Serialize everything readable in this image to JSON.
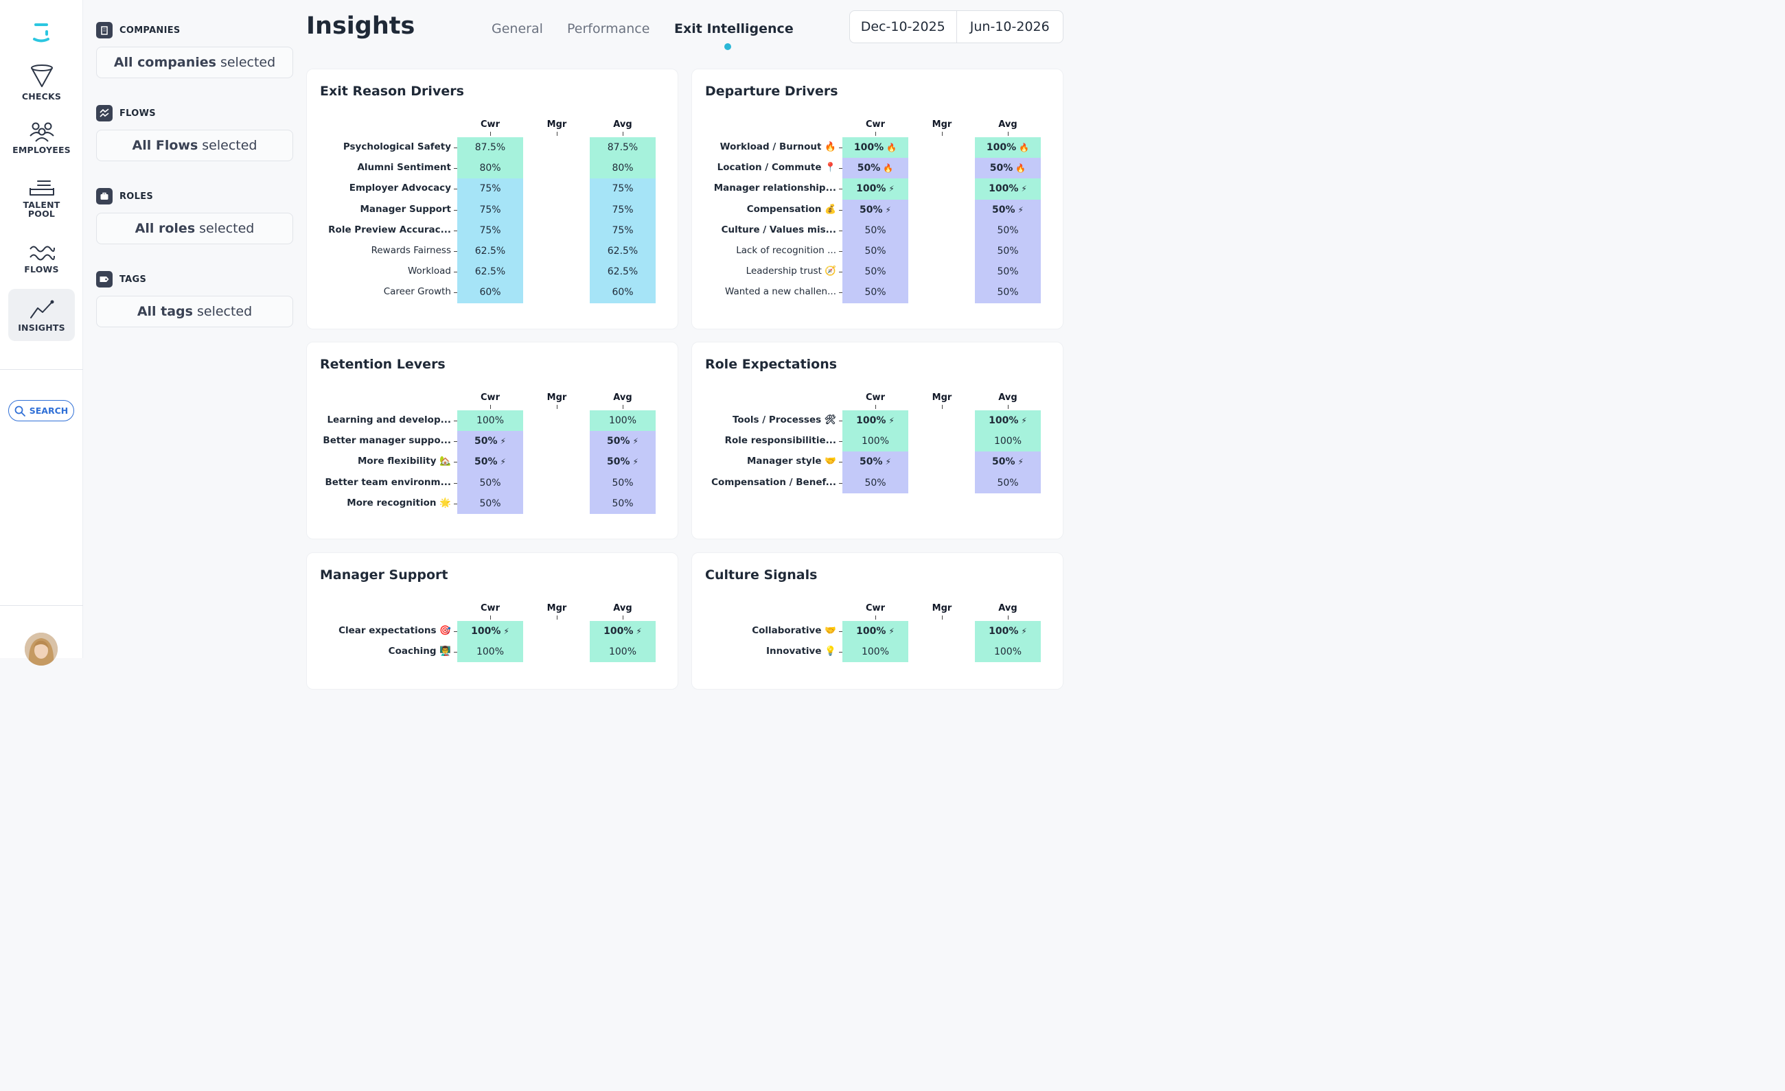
{
  "nav": {
    "items": [
      {
        "label": "CHECKS",
        "icon": "funnel-icon"
      },
      {
        "label": "EMPLOYEES",
        "icon": "people-icon"
      },
      {
        "label": "TALENT POOL",
        "icon": "tray-icon"
      },
      {
        "label": "FLOWS",
        "icon": "waves-icon"
      },
      {
        "label": "INSIGHTS",
        "icon": "chart-line-icon",
        "active": true
      }
    ],
    "search_label": "SEARCH"
  },
  "filters": [
    {
      "title": "COMPANIES",
      "value_bold": "All companies",
      "value_rest": "selected",
      "icon": "building-icon"
    },
    {
      "title": "FLOWS",
      "value_bold": "All Flows",
      "value_rest": "selected",
      "icon": "flows-icon"
    },
    {
      "title": "ROLES",
      "value_bold": "All roles",
      "value_rest": "selected",
      "icon": "briefcase-icon"
    },
    {
      "title": "TAGS",
      "value_bold": "All tags",
      "value_rest": "selected",
      "icon": "tag-icon"
    }
  ],
  "header": {
    "title": "Insights",
    "tabs": [
      "General",
      "Performance",
      "Exit Intelligence"
    ],
    "active_tab": "Exit Intelligence",
    "date_from": "Dec-10-2025",
    "date_to": "Jun-10-2026"
  },
  "colors": {
    "mint": "#a6f2dc",
    "sky": "#a6e4f7",
    "periwinkle": "#c3c9f9",
    "accent": "#2bb7d6",
    "link": "#2f6fd6"
  },
  "columns": [
    "Cwr",
    "Mgr",
    "Avg"
  ],
  "cards": [
    {
      "title": "Exit Reason Drivers",
      "rows": [
        {
          "label": "Psychological Safety",
          "bold": true,
          "value": "87.5%",
          "value_bold": false,
          "emoji": "",
          "color": "mint"
        },
        {
          "label": "Alumni Sentiment",
          "bold": true,
          "value": "80%",
          "value_bold": false,
          "emoji": "",
          "color": "mint"
        },
        {
          "label": "Employer Advocacy",
          "bold": true,
          "value": "75%",
          "value_bold": false,
          "emoji": "",
          "color": "sky"
        },
        {
          "label": "Manager Support",
          "bold": true,
          "value": "75%",
          "value_bold": false,
          "emoji": "",
          "color": "sky"
        },
        {
          "label": "Role Preview Accurac...",
          "bold": true,
          "value": "75%",
          "value_bold": false,
          "emoji": "",
          "color": "sky"
        },
        {
          "label": "Rewards Fairness",
          "bold": false,
          "value": "62.5%",
          "value_bold": false,
          "emoji": "",
          "color": "sky"
        },
        {
          "label": "Workload",
          "bold": false,
          "value": "62.5%",
          "value_bold": false,
          "emoji": "",
          "color": "sky"
        },
        {
          "label": "Career Growth",
          "bold": false,
          "value": "60%",
          "value_bold": false,
          "emoji": "",
          "color": "sky"
        }
      ]
    },
    {
      "title": "Departure Drivers",
      "rows": [
        {
          "label": "Workload / Burnout 🔥",
          "bold": true,
          "value": "100%",
          "value_bold": true,
          "emoji": "🔥",
          "color": "mint"
        },
        {
          "label": "Location / Commute 📍",
          "bold": true,
          "value": "50%",
          "value_bold": true,
          "emoji": "🔥",
          "color": "periwinkle"
        },
        {
          "label": "Manager relationship...",
          "bold": true,
          "value": "100%",
          "value_bold": true,
          "emoji": "⚡",
          "color": "mint"
        },
        {
          "label": "Compensation 💰",
          "bold": true,
          "value": "50%",
          "value_bold": true,
          "emoji": "⚡",
          "color": "periwinkle"
        },
        {
          "label": "Culture / Values mis...",
          "bold": true,
          "value": "50%",
          "value_bold": false,
          "emoji": "",
          "color": "periwinkle"
        },
        {
          "label": "Lack of recognition ...",
          "bold": false,
          "value": "50%",
          "value_bold": false,
          "emoji": "",
          "color": "periwinkle"
        },
        {
          "label": "Leadership trust 🧭",
          "bold": false,
          "value": "50%",
          "value_bold": false,
          "emoji": "",
          "color": "periwinkle"
        },
        {
          "label": "Wanted a new challen...",
          "bold": false,
          "value": "50%",
          "value_bold": false,
          "emoji": "",
          "color": "periwinkle"
        }
      ]
    },
    {
      "title": "Retention Levers",
      "rows": [
        {
          "label": "Learning and develop...",
          "bold": true,
          "value": "100%",
          "value_bold": false,
          "emoji": "",
          "color": "mint"
        },
        {
          "label": "Better manager suppo...",
          "bold": true,
          "value": "50%",
          "value_bold": true,
          "emoji": "⚡",
          "color": "periwinkle"
        },
        {
          "label": "More flexibility 🏡",
          "bold": true,
          "value": "50%",
          "value_bold": true,
          "emoji": "⚡",
          "color": "periwinkle"
        },
        {
          "label": "Better team environm...",
          "bold": true,
          "value": "50%",
          "value_bold": false,
          "emoji": "",
          "color": "periwinkle"
        },
        {
          "label": "More recognition 🌟",
          "bold": true,
          "value": "50%",
          "value_bold": false,
          "emoji": "",
          "color": "periwinkle"
        }
      ]
    },
    {
      "title": "Role Expectations",
      "rows": [
        {
          "label": "Tools / Processes 🛠",
          "bold": true,
          "value": "100%",
          "value_bold": true,
          "emoji": "⚡",
          "color": "mint"
        },
        {
          "label": "Role responsibilitie...",
          "bold": true,
          "value": "100%",
          "value_bold": false,
          "emoji": "",
          "color": "mint"
        },
        {
          "label": "Manager style 🤝",
          "bold": true,
          "value": "50%",
          "value_bold": true,
          "emoji": "⚡",
          "color": "periwinkle"
        },
        {
          "label": "Compensation / Benef...",
          "bold": true,
          "value": "50%",
          "value_bold": false,
          "emoji": "",
          "color": "periwinkle"
        }
      ]
    },
    {
      "title": "Manager Support",
      "rows": [
        {
          "label": "Clear expectations 🎯",
          "bold": true,
          "value": "100%",
          "value_bold": true,
          "emoji": "⚡",
          "color": "mint"
        },
        {
          "label": "Coaching 👨‍🏫",
          "bold": true,
          "value": "100%",
          "value_bold": false,
          "emoji": "",
          "color": "mint"
        }
      ]
    },
    {
      "title": "Culture Signals",
      "rows": [
        {
          "label": "Collaborative 🤝",
          "bold": true,
          "value": "100%",
          "value_bold": true,
          "emoji": "⚡",
          "color": "mint"
        },
        {
          "label": "Innovative 💡",
          "bold": true,
          "value": "100%",
          "value_bold": false,
          "emoji": "",
          "color": "mint"
        }
      ]
    }
  ]
}
